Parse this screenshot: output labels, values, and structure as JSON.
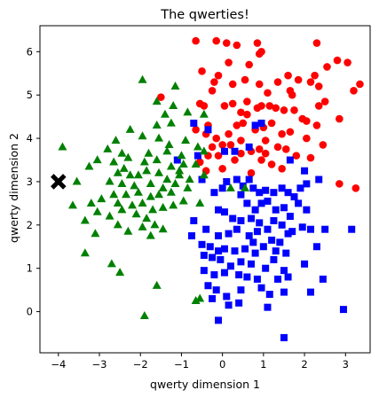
{
  "chart_data": {
    "type": "scatter",
    "title": "The qwerties!",
    "xlabel": "qwerty dimension 1",
    "ylabel": "qwerty dimension 2",
    "xlim": [
      -4.45,
      3.6
    ],
    "ylim": [
      -0.95,
      6.6
    ],
    "xticks": [
      -4,
      -3,
      -2,
      -1,
      0,
      1,
      2,
      3
    ],
    "yticks": [
      0,
      1,
      2,
      3,
      4,
      5,
      6
    ],
    "grid": false,
    "legend": "none",
    "series": [
      {
        "marker": "circle",
        "color": "#ff0000",
        "points": [
          [
            -0.65,
            6.25
          ],
          [
            -0.15,
            6.25
          ],
          [
            0.1,
            6.2
          ],
          [
            0.35,
            6.15
          ],
          [
            0.85,
            6.2
          ],
          [
            0.95,
            6.0
          ],
          [
            0.9,
            5.95
          ],
          [
            2.3,
            6.2
          ],
          [
            2.55,
            5.65
          ],
          [
            2.8,
            5.8
          ],
          [
            3.05,
            5.75
          ],
          [
            3.35,
            5.25
          ],
          [
            2.25,
            5.45
          ],
          [
            2.15,
            5.3
          ],
          [
            1.6,
            5.45
          ],
          [
            0.65,
            5.7
          ],
          [
            0.15,
            5.75
          ],
          [
            -0.5,
            5.55
          ],
          [
            -0.25,
            5.1
          ],
          [
            -0.2,
            5.3
          ],
          [
            -0.1,
            5.45
          ],
          [
            0.25,
            5.25
          ],
          [
            0.55,
            5.35
          ],
          [
            0.9,
            5.25
          ],
          [
            1.35,
            5.3
          ],
          [
            1.65,
            5.1
          ],
          [
            1.7,
            5.0
          ],
          [
            1.85,
            5.35
          ],
          [
            2.35,
            5.2
          ],
          [
            3.2,
            5.1
          ],
          [
            -1.5,
            4.95
          ],
          [
            -0.55,
            4.8
          ],
          [
            -0.45,
            4.75
          ],
          [
            0.05,
            4.75
          ],
          [
            0.25,
            4.8
          ],
          [
            0.45,
            4.6
          ],
          [
            0.6,
            4.55
          ],
          [
            0.85,
            4.7
          ],
          [
            0.95,
            4.75
          ],
          [
            1.15,
            4.75
          ],
          [
            1.3,
            4.7
          ],
          [
            1.5,
            4.65
          ],
          [
            1.75,
            4.65
          ],
          [
            1.95,
            4.45
          ],
          [
            2.05,
            4.4
          ],
          [
            2.3,
            4.3
          ],
          [
            2.35,
            4.75
          ],
          [
            2.5,
            4.85
          ],
          [
            2.85,
            4.45
          ],
          [
            -0.65,
            4.2
          ],
          [
            -0.4,
            4.1
          ],
          [
            -0.35,
            4.3
          ],
          [
            -0.15,
            4.0
          ],
          [
            0.15,
            4.1
          ],
          [
            0.35,
            4.3
          ],
          [
            0.5,
            4.35
          ],
          [
            0.8,
            4.2
          ],
          [
            1.0,
            4.25
          ],
          [
            1.2,
            4.35
          ],
          [
            1.45,
            4.1
          ],
          [
            1.65,
            4.15
          ],
          [
            2.05,
            4.0
          ],
          [
            2.45,
            3.85
          ],
          [
            -0.25,
            3.8
          ],
          [
            0.0,
            3.85
          ],
          [
            0.2,
            3.85
          ],
          [
            0.45,
            3.95
          ],
          [
            0.7,
            3.7
          ],
          [
            0.9,
            3.75
          ],
          [
            1.05,
            3.95
          ],
          [
            1.35,
            3.8
          ],
          [
            1.55,
            3.75
          ],
          [
            1.8,
            3.6
          ],
          [
            2.15,
            3.55
          ],
          [
            -0.35,
            3.6
          ],
          [
            -0.1,
            3.6
          ],
          [
            0.3,
            3.5
          ],
          [
            0.45,
            3.65
          ],
          [
            0.95,
            3.5
          ],
          [
            1.2,
            3.4
          ],
          [
            1.45,
            3.3
          ],
          [
            -0.55,
            3.45
          ],
          [
            -0.4,
            3.25
          ],
          [
            0.0,
            3.3
          ],
          [
            0.7,
            3.2
          ],
          [
            2.85,
            2.95
          ],
          [
            3.25,
            2.85
          ],
          [
            1.05,
            3.65
          ],
          [
            0.6,
            4.85
          ],
          [
            1.1,
            5.05
          ]
        ]
      },
      {
        "marker": "square",
        "color": "#0000ff",
        "points": [
          [
            -0.7,
            4.35
          ],
          [
            -0.35,
            4.2
          ],
          [
            0.8,
            4.3
          ],
          [
            0.95,
            4.35
          ],
          [
            -1.1,
            3.5
          ],
          [
            -0.6,
            3.6
          ],
          [
            0.05,
            3.7
          ],
          [
            0.3,
            3.7
          ],
          [
            0.65,
            3.8
          ],
          [
            1.65,
            3.5
          ],
          [
            2.0,
            3.25
          ],
          [
            2.35,
            3.05
          ],
          [
            -0.5,
            3.05
          ],
          [
            -0.2,
            2.75
          ],
          [
            0.1,
            3.0
          ],
          [
            0.35,
            3.05
          ],
          [
            0.5,
            2.9
          ],
          [
            0.65,
            3.05
          ],
          [
            0.75,
            2.85
          ],
          [
            0.9,
            2.75
          ],
          [
            1.05,
            2.8
          ],
          [
            1.25,
            2.75
          ],
          [
            1.45,
            2.85
          ],
          [
            1.6,
            2.75
          ],
          [
            1.75,
            2.65
          ],
          [
            1.9,
            2.85
          ],
          [
            2.05,
            2.95
          ],
          [
            0.45,
            2.7
          ],
          [
            0.6,
            2.5
          ],
          [
            0.8,
            2.35
          ],
          [
            0.95,
            2.5
          ],
          [
            1.1,
            2.55
          ],
          [
            1.3,
            2.35
          ],
          [
            1.5,
            2.4
          ],
          [
            1.65,
            2.2
          ],
          [
            1.85,
            2.5
          ],
          [
            2.05,
            2.35
          ],
          [
            -0.1,
            2.35
          ],
          [
            0.05,
            2.3
          ],
          [
            0.25,
            2.15
          ],
          [
            0.45,
            2.1
          ],
          [
            0.7,
            2.15
          ],
          [
            0.9,
            2.05
          ],
          [
            1.1,
            1.9
          ],
          [
            1.25,
            2.1
          ],
          [
            1.45,
            2.0
          ],
          [
            1.7,
            1.85
          ],
          [
            1.95,
            1.95
          ],
          [
            2.15,
            1.9
          ],
          [
            2.5,
            1.9
          ],
          [
            3.15,
            1.9
          ],
          [
            -0.7,
            2.1
          ],
          [
            -0.4,
            1.9
          ],
          [
            -0.1,
            1.75
          ],
          [
            0.15,
            1.8
          ],
          [
            0.35,
            1.9
          ],
          [
            0.65,
            1.75
          ],
          [
            0.85,
            1.85
          ],
          [
            1.2,
            1.65
          ],
          [
            1.4,
            1.6
          ],
          [
            1.6,
            1.8
          ],
          [
            2.3,
            1.5
          ],
          [
            -0.75,
            1.75
          ],
          [
            -0.5,
            1.55
          ],
          [
            -0.3,
            1.5
          ],
          [
            -0.1,
            1.4
          ],
          [
            0.05,
            1.45
          ],
          [
            0.3,
            1.4
          ],
          [
            0.55,
            1.45
          ],
          [
            0.8,
            1.35
          ],
          [
            1.0,
            1.5
          ],
          [
            1.3,
            1.4
          ],
          [
            1.55,
            1.35
          ],
          [
            2.0,
            1.1
          ],
          [
            -0.45,
            1.3
          ],
          [
            -0.25,
            1.25
          ],
          [
            -0.05,
            1.2
          ],
          [
            0.2,
            1.05
          ],
          [
            0.45,
            1.15
          ],
          [
            0.7,
            1.1
          ],
          [
            1.05,
            1.0
          ],
          [
            1.25,
            1.2
          ],
          [
            1.5,
            0.95
          ],
          [
            -0.45,
            0.95
          ],
          [
            -0.2,
            0.85
          ],
          [
            0.05,
            0.9
          ],
          [
            0.4,
            0.85
          ],
          [
            0.6,
            0.8
          ],
          [
            0.85,
            0.75
          ],
          [
            1.35,
            0.75
          ],
          [
            1.6,
            0.8
          ],
          [
            2.45,
            0.75
          ],
          [
            -0.35,
            0.6
          ],
          [
            -0.15,
            0.5
          ],
          [
            0.1,
            0.35
          ],
          [
            0.45,
            0.5
          ],
          [
            0.95,
            0.55
          ],
          [
            1.15,
            0.4
          ],
          [
            1.5,
            0.45
          ],
          [
            2.15,
            0.45
          ],
          [
            -0.25,
            0.3
          ],
          [
            0.15,
            0.15
          ],
          [
            0.4,
            0.2
          ],
          [
            1.1,
            0.1
          ],
          [
            2.95,
            0.05
          ],
          [
            -0.1,
            -0.2
          ],
          [
            1.5,
            -0.6
          ],
          [
            0.0,
            2.85
          ],
          [
            0.75,
            1.6
          ]
        ]
      },
      {
        "marker": "triangle",
        "color": "#008000",
        "points": [
          [
            -1.95,
            5.35
          ],
          [
            -1.15,
            5.2
          ],
          [
            -1.6,
            4.85
          ],
          [
            -1.2,
            4.75
          ],
          [
            -1.4,
            4.55
          ],
          [
            -0.85,
            4.6
          ],
          [
            -1.25,
            4.35
          ],
          [
            -0.45,
            4.55
          ],
          [
            -1.6,
            4.3
          ],
          [
            -2.6,
            3.95
          ],
          [
            -2.25,
            4.2
          ],
          [
            -1.95,
            4.05
          ],
          [
            -1.55,
            4.0
          ],
          [
            -1.3,
            3.85
          ],
          [
            -0.9,
            3.95
          ],
          [
            -0.6,
            3.8
          ],
          [
            -3.9,
            3.8
          ],
          [
            -2.8,
            3.75
          ],
          [
            -2.45,
            3.65
          ],
          [
            -1.8,
            3.65
          ],
          [
            -1.35,
            3.7
          ],
          [
            -1.0,
            3.6
          ],
          [
            -0.45,
            3.7
          ],
          [
            -3.25,
            3.35
          ],
          [
            -3.05,
            3.5
          ],
          [
            -2.65,
            3.45
          ],
          [
            -2.3,
            3.55
          ],
          [
            -1.9,
            3.45
          ],
          [
            -1.6,
            3.5
          ],
          [
            -1.25,
            3.35
          ],
          [
            -0.95,
            3.4
          ],
          [
            -0.65,
            3.4
          ],
          [
            -2.55,
            3.2
          ],
          [
            -2.25,
            3.15
          ],
          [
            -2.05,
            3.15
          ],
          [
            -1.85,
            3.25
          ],
          [
            -1.55,
            3.2
          ],
          [
            -1.35,
            3.05
          ],
          [
            -1.05,
            3.15
          ],
          [
            -0.8,
            3.05
          ],
          [
            -3.55,
            3.0
          ],
          [
            -2.75,
            3.0
          ],
          [
            -2.45,
            2.95
          ],
          [
            -2.15,
            2.9
          ],
          [
            -1.75,
            2.95
          ],
          [
            -1.45,
            2.85
          ],
          [
            -1.15,
            2.95
          ],
          [
            -0.85,
            2.85
          ],
          [
            -2.65,
            2.7
          ],
          [
            -2.35,
            2.7
          ],
          [
            -2.05,
            2.75
          ],
          [
            -1.75,
            2.65
          ],
          [
            -1.55,
            2.7
          ],
          [
            -1.25,
            2.75
          ],
          [
            -3.65,
            2.45
          ],
          [
            -3.2,
            2.5
          ],
          [
            -2.95,
            2.6
          ],
          [
            -2.55,
            2.5
          ],
          [
            -2.2,
            2.45
          ],
          [
            -1.95,
            2.5
          ],
          [
            -1.7,
            2.35
          ],
          [
            -1.45,
            2.4
          ],
          [
            -1.2,
            2.45
          ],
          [
            -0.95,
            2.55
          ],
          [
            -3.05,
            2.3
          ],
          [
            -2.75,
            2.2
          ],
          [
            -2.45,
            2.35
          ],
          [
            -2.1,
            2.25
          ],
          [
            -1.85,
            2.15
          ],
          [
            -3.35,
            2.1
          ],
          [
            -2.55,
            2.0
          ],
          [
            -1.95,
            1.95
          ],
          [
            -1.65,
            2.0
          ],
          [
            -1.45,
            1.9
          ],
          [
            -3.1,
            1.8
          ],
          [
            -2.3,
            1.85
          ],
          [
            -1.75,
            1.75
          ],
          [
            -3.35,
            1.35
          ],
          [
            -2.7,
            1.1
          ],
          [
            -2.5,
            0.9
          ],
          [
            -1.6,
            0.6
          ],
          [
            -0.65,
            0.25
          ],
          [
            -0.55,
            0.3
          ],
          [
            -1.9,
            -0.1
          ],
          [
            0.2,
            2.85
          ],
          [
            0.55,
            2.85
          ],
          [
            -0.55,
            2.5
          ],
          [
            -1.05,
            3.25
          ],
          [
            -0.45,
            3.15
          ],
          [
            -2.4,
            3.3
          ]
        ]
      },
      {
        "marker": "x",
        "color": "#000000",
        "points": [
          [
            -4,
            3
          ]
        ]
      }
    ]
  }
}
